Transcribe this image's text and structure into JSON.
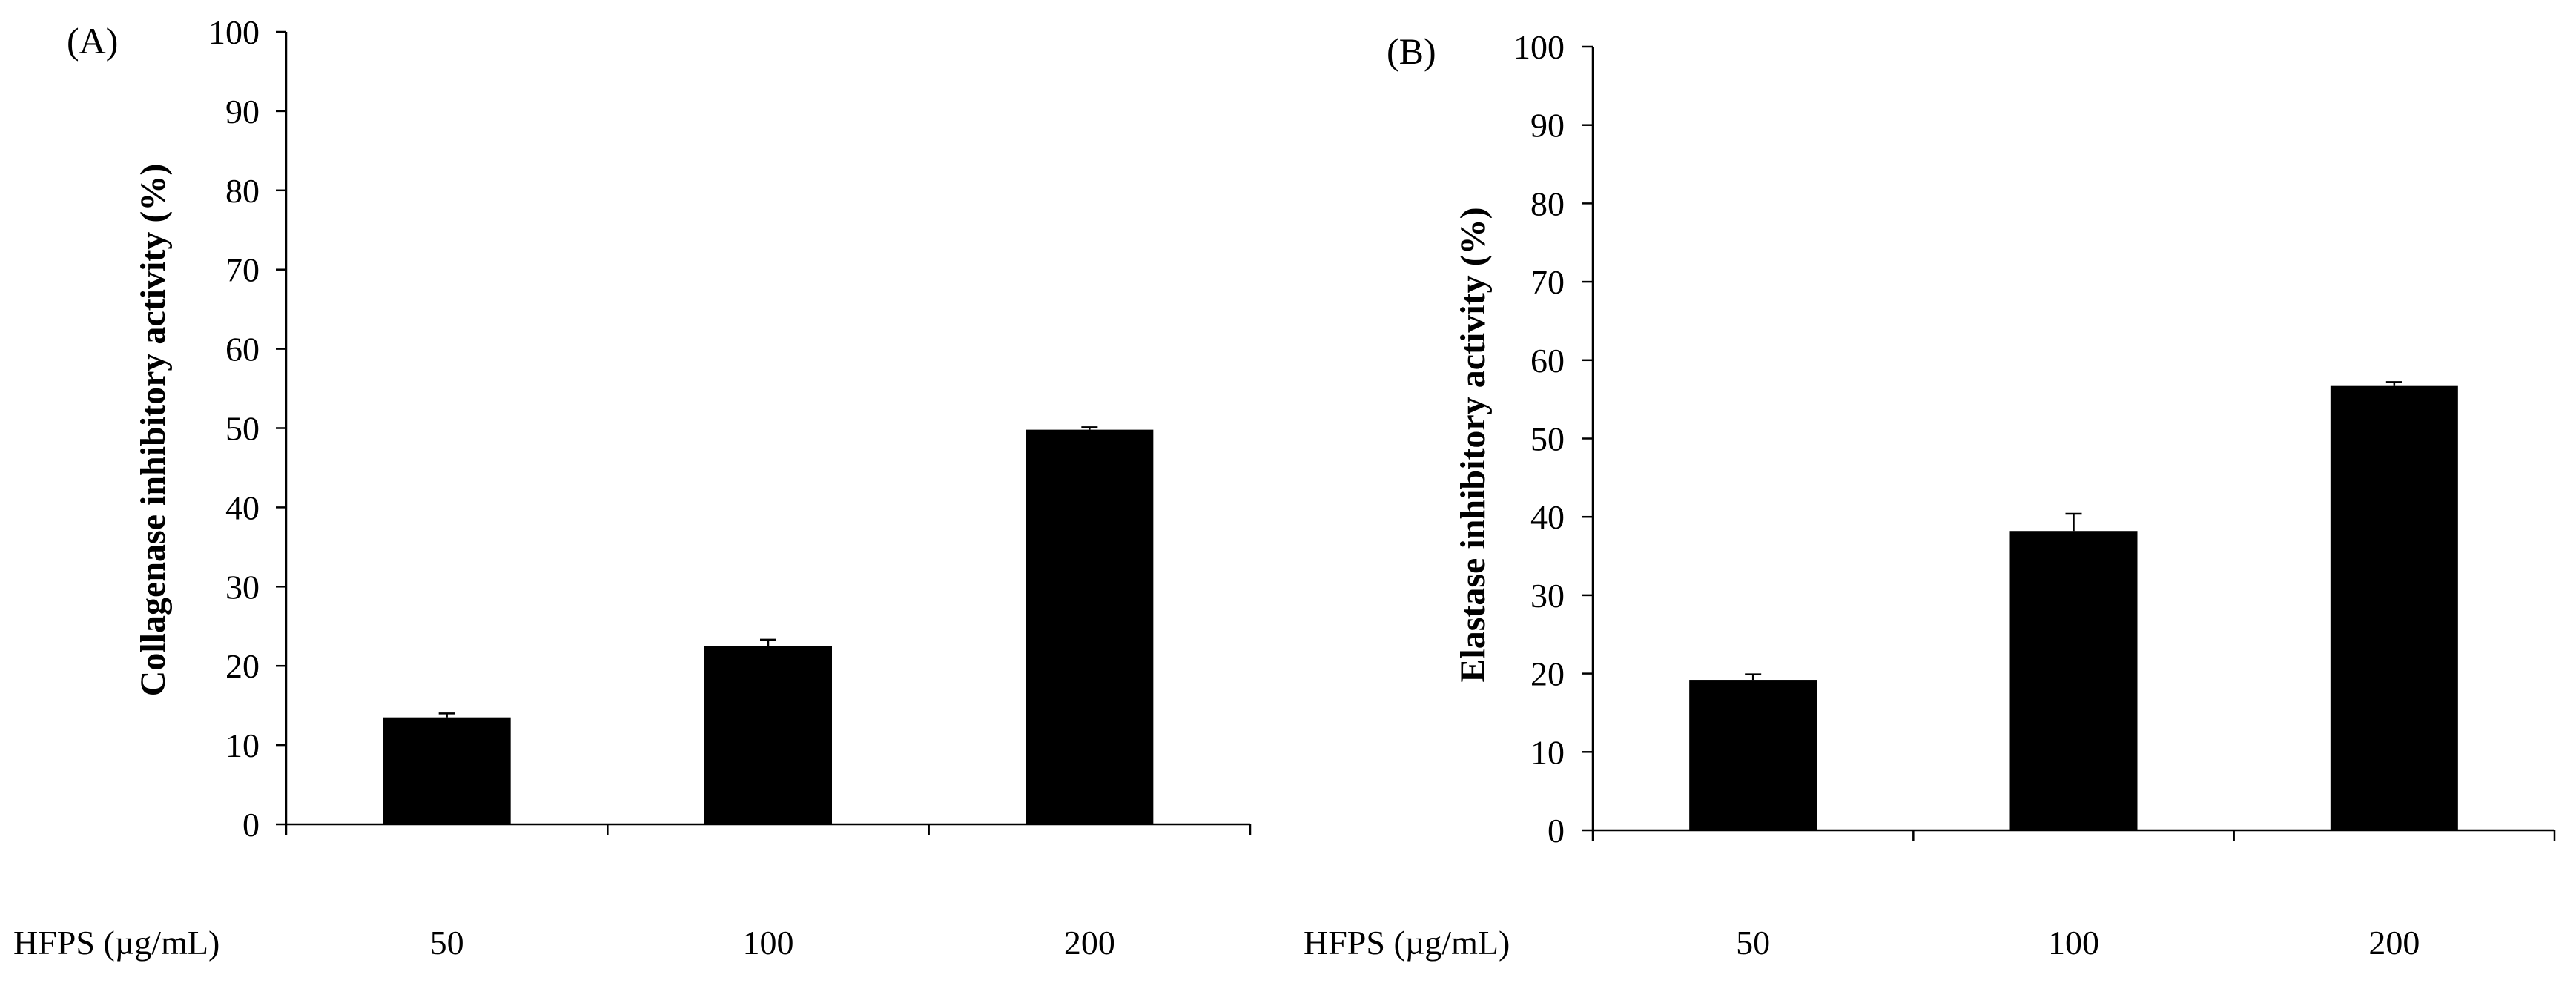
{
  "colors": {
    "bar": "#000000",
    "axis": "#000000",
    "background": "#ffffff"
  },
  "chart_data": [
    {
      "panel": "(A)",
      "type": "bar",
      "categories": [
        "50",
        "100",
        "200"
      ],
      "xlabel": "HFPS (µg/mL)",
      "ylabel": "Collagenase inhibitory activity (%)",
      "ylim": [
        0,
        100
      ],
      "yticks": [
        "0",
        "10",
        "20",
        "30",
        "40",
        "50",
        "60",
        "70",
        "80",
        "90",
        "100"
      ],
      "values": [
        13.5,
        22.5,
        49.8
      ],
      "errors": [
        0.5,
        0.8,
        0.3
      ],
      "grid": false,
      "legend": "none"
    },
    {
      "panel": "(B)",
      "type": "bar",
      "categories": [
        "50",
        "100",
        "200"
      ],
      "xlabel": "HFPS (µg/mL)",
      "ylabel": "Elastase inhibitory activity (%)",
      "ylim": [
        0,
        100
      ],
      "yticks": [
        "0",
        "10",
        "20",
        "30",
        "40",
        "50",
        "60",
        "70",
        "80",
        "90",
        "100"
      ],
      "values": [
        19.2,
        38.2,
        56.7
      ],
      "errors": [
        0.7,
        2.2,
        0.5
      ],
      "grid": false,
      "legend": "none"
    }
  ]
}
